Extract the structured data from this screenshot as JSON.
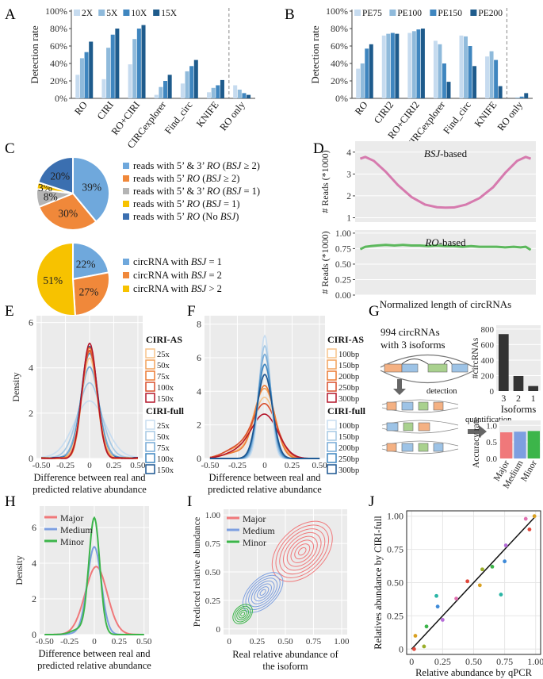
{
  "colors": {
    "blue1": "#c6dbef",
    "blue2": "#8fbadb",
    "blue3": "#3f86bf",
    "blue4": "#1e5b8c",
    "pieA": "#6fa8dc",
    "pieB": "#f0883a",
    "pieC": "#b4b4b4",
    "pieD": "#f7c200",
    "pieE": "#3b6fb0",
    "pink": "#d67aae",
    "green": "#5cb85c",
    "major": "#f0787a",
    "medium": "#7d9fe0",
    "minor": "#3cb54a",
    "panelBg": "#ebebeb",
    "grid": "#ffffff",
    "as_colors": [
      "#f7c48b",
      "#f2a25c",
      "#ec7a33",
      "#d94e2c",
      "#b4162a"
    ],
    "full_colors": [
      "#c8ddf0",
      "#a5c8e4",
      "#76aad6",
      "#3f86bf",
      "#1b5590"
    ],
    "pointColors": [
      "#e0483c",
      "#d9a020",
      "#9aae2a",
      "#3cb54a",
      "#2ab5a5",
      "#3e8ad8",
      "#b56cd8",
      "#e070b0"
    ]
  },
  "panels": {
    "A": {
      "label": "A",
      "chart_data": {
        "type": "bar",
        "ylabel": "Detection rate",
        "yticks": [
          "0%",
          "20%",
          "40%",
          "60%",
          "80%",
          "100%"
        ],
        "ylim": [
          0,
          100
        ],
        "legend": [
          "2X",
          "5X",
          "10X",
          "15X"
        ],
        "categories": [
          "RO",
          "CIRI",
          "RO+CIRI",
          "CIRCexplorer",
          "Find_circ",
          "KNIFE",
          "RO only"
        ],
        "series": [
          {
            "name": "2X",
            "values": [
              27,
              22,
              39,
              4,
              17,
              7,
              15
            ]
          },
          {
            "name": "5X",
            "values": [
              46,
              58,
              68,
              13,
              31,
              12,
              10
            ]
          },
          {
            "name": "10X",
            "values": [
              53,
              73,
              80,
              20,
              37,
              15,
              6
            ]
          },
          {
            "name": "15X",
            "values": [
              65,
              80,
              84,
              27,
              44,
              21,
              4
            ]
          }
        ]
      }
    },
    "B": {
      "label": "B",
      "chart_data": {
        "type": "bar",
        "ylabel": "Detection rate",
        "yticks": [
          "0%",
          "20%",
          "40%",
          "60%",
          "80%",
          "100%"
        ],
        "ylim": [
          0,
          100
        ],
        "legend": [
          "PE75",
          "PE100",
          "PE150",
          "PE200"
        ],
        "categories": [
          "RO",
          "CIRI2",
          "RO+CIRI2",
          "CIRCexplorer",
          "Find_circ",
          "KNIFE",
          "RO only"
        ],
        "series": [
          {
            "name": "PE75",
            "values": [
              34,
              72,
              75,
              66,
              72,
              48,
              0
            ]
          },
          {
            "name": "PE100",
            "values": [
              40,
              74,
              77,
              62,
              71,
              54,
              1
            ]
          },
          {
            "name": "PE150",
            "values": [
              57,
              75,
              79,
              40,
              60,
              44,
              2
            ]
          },
          {
            "name": "PE200",
            "values": [
              62,
              74,
              80,
              19,
              37,
              14,
              6
            ]
          }
        ]
      }
    },
    "C": {
      "label": "C",
      "chart_data": [
        {
          "type": "pie",
          "slices": [
            {
              "name": "reads with 5’ & 3’ RO (BSJ ≥ 2)",
              "value": 39,
              "text": "39%"
            },
            {
              "name": "reads with 5’ RO (BSJ ≥ 2)",
              "value": 30,
              "text": "30%"
            },
            {
              "name": "reads with 5’ & 3’ RO (BSJ = 1)",
              "value": 8,
              "text": "8%"
            },
            {
              "name": "reads with 5’ RO (BSJ = 1)",
              "value": 3,
              "text": "3%"
            },
            {
              "name": "reads with 5’ RO (No BSJ)",
              "value": 20,
              "text": "20%"
            }
          ]
        },
        {
          "type": "pie",
          "slices": [
            {
              "name": "circRNA with BSJ = 1",
              "value": 22,
              "text": "22%"
            },
            {
              "name": "circRNA with BSJ = 2",
              "value": 27,
              "text": "27%"
            },
            {
              "name": "circRNA with BSJ > 2",
              "value": 51,
              "text": "51%"
            }
          ]
        }
      ],
      "legend1": [
        {
          "pre": "reads with 5’ & 3’ ",
          "ital": "RO",
          "mid": " (",
          "ital2": "BSJ",
          "post": " ≥ 2)"
        },
        {
          "pre": "reads with 5’ ",
          "ital": "RO",
          "mid": " (",
          "ital2": "BSJ",
          "post": " ≥ 2)"
        },
        {
          "pre": "reads with 5’ & 3’ ",
          "ital": "RO",
          "mid": " (",
          "ital2": "BSJ",
          "post": " = 1)"
        },
        {
          "pre": "reads with 5’ ",
          "ital": "RO",
          "mid": " (",
          "ital2": "BSJ",
          "post": " = 1)"
        },
        {
          "pre": "reads with 5’ ",
          "ital": "RO",
          "mid": " (No ",
          "ital2": "BSJ",
          "post": ")"
        }
      ],
      "legend2": [
        {
          "pre": "circRNA with ",
          "ital": "BSJ",
          "post": " = 1"
        },
        {
          "pre": "circRNA with ",
          "ital": "BSJ",
          "post": " = 2"
        },
        {
          "pre": "circRNA with ",
          "ital": "BSJ",
          "post": " > 2"
        }
      ]
    },
    "D": {
      "label": "D",
      "xlabel": "Normalized length of circRNAs",
      "chart_data": [
        {
          "type": "line",
          "title_ital": "BSJ",
          "title_rest": "-based",
          "ylabel": "# Reads (*1000)",
          "yticks": [
            "1",
            "2",
            "3",
            "4"
          ],
          "ylim": [
            0.8,
            4.5
          ],
          "x": [
            0,
            0.03,
            0.08,
            0.15,
            0.22,
            0.3,
            0.38,
            0.45,
            0.5,
            0.55,
            0.62,
            0.7,
            0.78,
            0.85,
            0.92,
            0.97,
            1
          ],
          "y": [
            3.7,
            3.78,
            3.6,
            3.1,
            2.5,
            1.95,
            1.6,
            1.48,
            1.46,
            1.47,
            1.6,
            1.9,
            2.4,
            3.05,
            3.6,
            3.78,
            3.7
          ]
        },
        {
          "type": "line",
          "title_ital": "RO",
          "title_rest": "-based",
          "ylabel": "# Reads (*1000)",
          "yticks": [
            "0.00",
            "0.25",
            "0.50",
            "0.75",
            "1.00"
          ],
          "ylim": [
            0,
            1.05
          ],
          "x": [
            0,
            0.03,
            0.06,
            0.1,
            0.15,
            0.2,
            0.25,
            0.3,
            0.35,
            0.4,
            0.45,
            0.5,
            0.55,
            0.6,
            0.65,
            0.7,
            0.75,
            0.8,
            0.85,
            0.9,
            0.94,
            0.97,
            1
          ],
          "y": [
            0.74,
            0.78,
            0.79,
            0.8,
            0.81,
            0.8,
            0.81,
            0.8,
            0.8,
            0.79,
            0.8,
            0.79,
            0.79,
            0.78,
            0.79,
            0.78,
            0.78,
            0.78,
            0.77,
            0.78,
            0.77,
            0.78,
            0.73
          ]
        }
      ]
    },
    "E": {
      "label": "E",
      "chart_data": {
        "type": "line",
        "xlabel1": "Difference between real and",
        "xlabel2": "predicted relative abundance",
        "ylabel": "Density",
        "xticks": [
          "-0.50",
          "-0.25",
          "0",
          "0.25",
          "0.50"
        ],
        "yticks": [
          "0",
          "2",
          "4",
          "6"
        ],
        "xlim": [
          -0.5,
          0.5
        ],
        "ylim": [
          0,
          6.3
        ],
        "legend_as_title": "CIRI-AS",
        "legend_as": [
          "25x",
          "50x",
          "75x",
          "100x",
          "150x"
        ],
        "legend_full_title": "CIRI-full",
        "legend_full": [
          "25x",
          "50x",
          "75x",
          "100x",
          "150x"
        ],
        "as_sd": [
          0.085,
          0.08,
          0.075,
          0.078,
          0.076
        ],
        "as_peak": [
          4.4,
          4.7,
          4.9,
          4.8,
          5.1
        ],
        "full_sd": [
          0.16,
          0.12,
          0.095,
          0.085,
          0.08
        ],
        "full_peak": [
          2.5,
          3.3,
          4.0,
          4.6,
          4.9
        ]
      }
    },
    "F": {
      "label": "F",
      "chart_data": {
        "type": "line",
        "xlabel1": "Difference between real and",
        "xlabel2": "predicted relative abundance",
        "xticks": [
          "-0.50",
          "-0.25",
          "0",
          "0.25",
          "0.50"
        ],
        "yticks": [
          "0",
          "2",
          "4",
          "6",
          "8"
        ],
        "xlim": [
          -0.5,
          0.5
        ],
        "ylim": [
          0,
          8.5
        ],
        "legend_as_title": "CIRI-AS",
        "legend_as": [
          "100bp",
          "150bp",
          "200bp",
          "250bp",
          "300bp"
        ],
        "legend_full_title": "CIRI-full",
        "legend_full": [
          "100bp",
          "150bp",
          "200bp",
          "250bp",
          "300bp"
        ],
        "as_sd": [
          0.1,
          0.095,
          0.09,
          0.11,
          0.12
        ],
        "as_peak": [
          3.6,
          4.1,
          4.3,
          3.2,
          2.6
        ],
        "full_sd": [
          0.05,
          0.055,
          0.06,
          0.065,
          0.07
        ],
        "full_peak": [
          7.3,
          6.7,
          6.2,
          5.6,
          5.0
        ]
      }
    },
    "G": {
      "label": "G",
      "text1": "994 circRNAs",
      "text2": "with 3 isoforms",
      "detection": "detection",
      "quantification": "quantification",
      "chart_data": [
        {
          "type": "bar",
          "ylabel": "#circRNAs",
          "xlabel": "Isoforms",
          "categories": [
            "3",
            "2",
            "1"
          ],
          "values": [
            735,
            195,
            65
          ],
          "yticks": [
            "0",
            "200",
            "400",
            "600",
            "800"
          ],
          "ylim": [
            0,
            850
          ]
        },
        {
          "type": "bar",
          "ylabel": "Accuracy rate",
          "categories": [
            "Major",
            "Medium",
            "Minor"
          ],
          "values": [
            0.79,
            0.81,
            0.83
          ],
          "yticks": [
            "0.0",
            "0.5",
            "1.0"
          ],
          "ylim": [
            0,
            1.15
          ]
        }
      ]
    },
    "H": {
      "label": "H",
      "chart_data": {
        "type": "line",
        "xlabel1": "Difference between real and",
        "xlabel2": "predicted relative abundance",
        "ylabel": "Density",
        "xticks": [
          "-0.50",
          "-0.25",
          "0",
          "0.25",
          "0.50"
        ],
        "yticks": [
          "0",
          "2",
          "4",
          "6"
        ],
        "xlim": [
          -0.5,
          0.5
        ],
        "ylim": [
          0,
          7.2
        ],
        "legend": [
          "Major",
          "Medium",
          "Minor"
        ],
        "peaks": [
          3.8,
          4.9,
          6.5
        ],
        "sds": [
          0.11,
          0.07,
          0.055
        ]
      }
    },
    "I": {
      "label": "I",
      "chart_data": {
        "type": "contour",
        "xlabel1": "Real relative abundance of",
        "xlabel2": "the isoform",
        "ylabel": "Predicted  relative abundance",
        "xticks": [
          "0",
          "0.25",
          "0.50",
          "0.75",
          "1.00"
        ],
        "yticks": [
          "0",
          "0.25",
          "0.50",
          "0.75",
          "1.00"
        ],
        "xlim": [
          -0.05,
          1.05
        ],
        "ylim": [
          -0.05,
          1.05
        ],
        "legend": [
          "Major",
          "Medium",
          "Minor"
        ],
        "centers": [
          [
            0.65,
            0.68
          ],
          [
            0.3,
            0.32
          ],
          [
            0.12,
            0.13
          ]
        ]
      }
    },
    "J": {
      "label": "J",
      "chart_data": {
        "type": "scatter",
        "xlabel": "Relative abundance by qPCR",
        "ylabel": "Relatives abundance by CIRI-full",
        "xticks": [
          "0",
          "0.25",
          "0.50",
          "0.75",
          "1.00"
        ],
        "yticks": [
          "0",
          "0.25",
          "0.50",
          "0.75",
          "1.00"
        ],
        "xlim": [
          -0.04,
          1.04
        ],
        "ylim": [
          -0.04,
          1.04
        ],
        "points": [
          [
            0.02,
            0.0
          ],
          [
            0.03,
            0.1
          ],
          [
            0.1,
            0.02
          ],
          [
            0.12,
            0.17
          ],
          [
            0.2,
            0.4
          ],
          [
            0.21,
            0.32
          ],
          [
            0.25,
            0.22
          ],
          [
            0.36,
            0.38
          ],
          [
            0.45,
            0.51
          ],
          [
            0.55,
            0.48
          ],
          [
            0.57,
            0.6
          ],
          [
            0.65,
            0.62
          ],
          [
            0.72,
            0.41
          ],
          [
            0.75,
            0.66
          ],
          [
            0.76,
            0.78
          ],
          [
            0.92,
            0.98
          ],
          [
            0.95,
            0.9
          ],
          [
            0.99,
            1.0
          ]
        ]
      }
    }
  }
}
